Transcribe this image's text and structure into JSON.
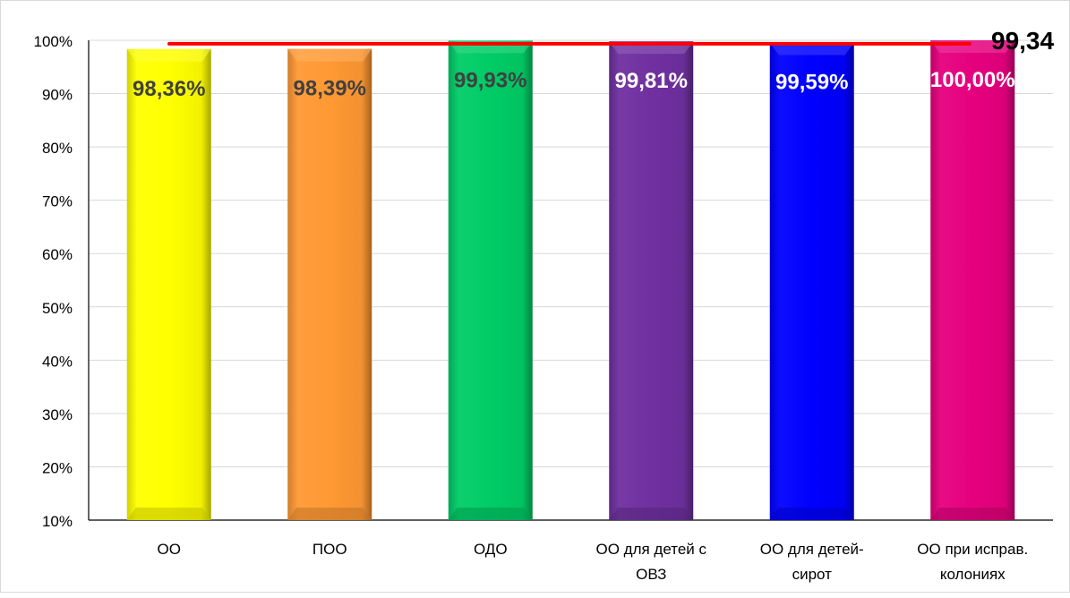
{
  "chart_data": {
    "type": "bar",
    "categories": [
      [
        "ОО"
      ],
      [
        "ПОО"
      ],
      [
        "ОДО"
      ],
      [
        "ОО для детей с",
        "ОВЗ"
      ],
      [
        "ОО для детей-",
        "сирот"
      ],
      [
        "ОО при исправ.",
        "колониях"
      ]
    ],
    "values": [
      98.36,
      98.39,
      99.93,
      99.81,
      99.59,
      100.0
    ],
    "data_labels": [
      "98,36%",
      "98,39%",
      "99,93%",
      "99,81%",
      "99,59%",
      "100,00%"
    ],
    "colors": [
      "#ffff00",
      "#ff9933",
      "#00cc66",
      "#7030a0",
      "#0000ff",
      "#e6007e"
    ],
    "label_colors": [
      "#404040",
      "#404040",
      "#404040",
      "#ffffff",
      "#ffffff",
      "#ffffff"
    ],
    "ylim": [
      10,
      100
    ],
    "yticks": [
      10,
      20,
      30,
      40,
      50,
      60,
      70,
      80,
      90,
      100
    ],
    "ytick_labels": [
      "10%",
      "20%",
      "30%",
      "40%",
      "50%",
      "60%",
      "70%",
      "80%",
      "90%",
      "100%"
    ],
    "reference_line": {
      "value": 99.34,
      "label": "99,34",
      "color": "#ff0000"
    },
    "grid": true,
    "legend": "none",
    "title": "",
    "xlabel": "",
    "ylabel": ""
  }
}
